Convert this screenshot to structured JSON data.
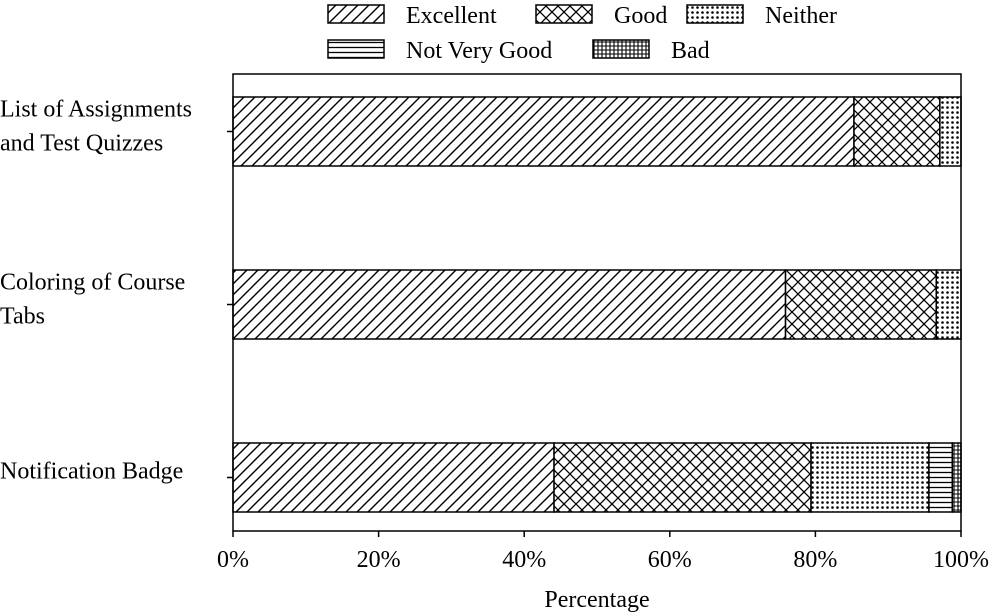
{
  "chart_data": {
    "type": "bar",
    "orientation": "horizontal",
    "stacked": true,
    "title": "",
    "xlabel": "Percentage",
    "ylabel": "",
    "xlim": [
      0,
      100
    ],
    "xticks": [
      "0%",
      "20%",
      "40%",
      "60%",
      "80%",
      "100%"
    ],
    "xtick_values": [
      0,
      20,
      40,
      60,
      80,
      100
    ],
    "legend_placement": "top",
    "grid": false,
    "categories": [
      [
        "List of Assignments",
        "and Test Quizzes"
      ],
      [
        "Coloring of Course",
        "Tabs"
      ],
      [
        "Notification Badge"
      ]
    ],
    "series": [
      {
        "name": "Excellent",
        "pattern": "diagonal-hatch",
        "values": [
          85.3,
          75.9,
          44.1
        ]
      },
      {
        "name": "Good",
        "pattern": "cross-hatch",
        "values": [
          11.8,
          20.7,
          35.3
        ]
      },
      {
        "name": "Neither",
        "pattern": "dots",
        "values": [
          2.9,
          3.4,
          16.2
        ]
      },
      {
        "name": "Not Very Good",
        "pattern": "horizontal-lines",
        "values": [
          0,
          0,
          3.2
        ]
      },
      {
        "name": "Bad",
        "pattern": "grid",
        "values": [
          0,
          0,
          1.2
        ]
      }
    ]
  }
}
